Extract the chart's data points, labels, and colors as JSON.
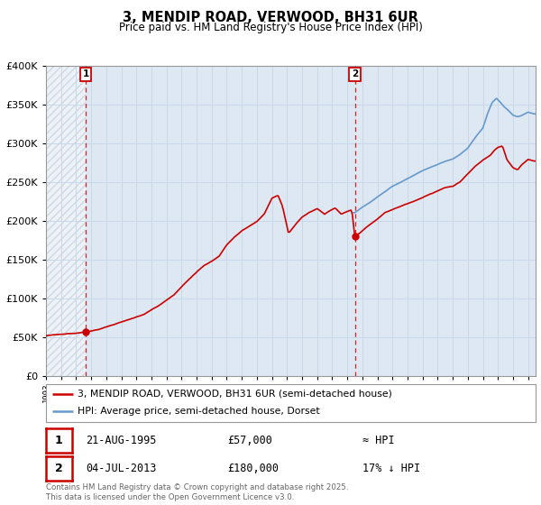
{
  "title": "3, MENDIP ROAD, VERWOOD, BH31 6UR",
  "subtitle": "Price paid vs. HM Land Registry's House Price Index (HPI)",
  "ylim": [
    0,
    400000
  ],
  "yticks": [
    0,
    50000,
    100000,
    150000,
    200000,
    250000,
    300000,
    350000,
    400000
  ],
  "hatch_region_end_year": 1995.65,
  "sale1": {
    "date_label": "21-AUG-1995",
    "year": 1995.64,
    "price": 57000,
    "hpi_label": "≈ HPI"
  },
  "sale2": {
    "date_label": "04-JUL-2013",
    "year": 2013.5,
    "price": 180000,
    "hpi_label": "17% ↓ HPI"
  },
  "legend_red": "3, MENDIP ROAD, VERWOOD, BH31 6UR (semi-detached house)",
  "legend_blue": "HPI: Average price, semi-detached house, Dorset",
  "footer": "Contains HM Land Registry data © Crown copyright and database right 2025.\nThis data is licensed under the Open Government Licence v3.0.",
  "red_color": "#cc0000",
  "blue_color": "#6699cc",
  "grid_color": "#c8d8e8",
  "bg_color": "#dde8f2",
  "xmin": 1993,
  "xmax": 2025.5,
  "red_keypoints": [
    [
      1993.0,
      52000
    ],
    [
      1994.0,
      54000
    ],
    [
      1995.0,
      55500
    ],
    [
      1995.64,
      57000
    ],
    [
      1996.5,
      60000
    ],
    [
      1997.5,
      66000
    ],
    [
      1998.5,
      72000
    ],
    [
      1999.5,
      79000
    ],
    [
      2000.5,
      90000
    ],
    [
      2001.5,
      104000
    ],
    [
      2002.5,
      124000
    ],
    [
      2003.5,
      142000
    ],
    [
      2004.5,
      154000
    ],
    [
      2005.0,
      168000
    ],
    [
      2005.5,
      178000
    ],
    [
      2006.0,
      186000
    ],
    [
      2006.5,
      192000
    ],
    [
      2007.0,
      198000
    ],
    [
      2007.5,
      208000
    ],
    [
      2008.0,
      228000
    ],
    [
      2008.4,
      232000
    ],
    [
      2008.7,
      218000
    ],
    [
      2009.1,
      183000
    ],
    [
      2009.6,
      195000
    ],
    [
      2010.0,
      204000
    ],
    [
      2010.5,
      210000
    ],
    [
      2011.0,
      215000
    ],
    [
      2011.5,
      208000
    ],
    [
      2011.8,
      212000
    ],
    [
      2012.2,
      216000
    ],
    [
      2012.6,
      208000
    ],
    [
      2013.0,
      212000
    ],
    [
      2013.3,
      214000
    ],
    [
      2013.5,
      180000
    ],
    [
      2013.8,
      184000
    ],
    [
      2014.3,
      192000
    ],
    [
      2015.0,
      202000
    ],
    [
      2015.5,
      210000
    ],
    [
      2016.0,
      214000
    ],
    [
      2016.5,
      218000
    ],
    [
      2017.0,
      222000
    ],
    [
      2017.5,
      226000
    ],
    [
      2018.0,
      230000
    ],
    [
      2018.5,
      234000
    ],
    [
      2019.0,
      238000
    ],
    [
      2019.5,
      242000
    ],
    [
      2020.0,
      244000
    ],
    [
      2020.5,
      250000
    ],
    [
      2021.0,
      260000
    ],
    [
      2021.5,
      270000
    ],
    [
      2022.0,
      278000
    ],
    [
      2022.5,
      284000
    ],
    [
      2022.8,
      291000
    ],
    [
      2023.0,
      294000
    ],
    [
      2023.3,
      296000
    ],
    [
      2023.6,
      278000
    ],
    [
      2024.0,
      268000
    ],
    [
      2024.3,
      265000
    ],
    [
      2024.6,
      272000
    ],
    [
      2025.0,
      278000
    ],
    [
      2025.4,
      276000
    ]
  ],
  "blue_keypoints": [
    [
      2013.5,
      210600
    ],
    [
      2014.0,
      218000
    ],
    [
      2014.5,
      224000
    ],
    [
      2015.0,
      231000
    ],
    [
      2015.5,
      238000
    ],
    [
      2016.0,
      245000
    ],
    [
      2016.5,
      250000
    ],
    [
      2017.0,
      255000
    ],
    [
      2017.5,
      260000
    ],
    [
      2018.0,
      265000
    ],
    [
      2018.5,
      269000
    ],
    [
      2019.0,
      273000
    ],
    [
      2019.5,
      277000
    ],
    [
      2020.0,
      280000
    ],
    [
      2020.5,
      286000
    ],
    [
      2021.0,
      294000
    ],
    [
      2021.5,
      308000
    ],
    [
      2022.0,
      320000
    ],
    [
      2022.3,
      338000
    ],
    [
      2022.6,
      352000
    ],
    [
      2022.9,
      358000
    ],
    [
      2023.1,
      354000
    ],
    [
      2023.4,
      347000
    ],
    [
      2023.7,
      342000
    ],
    [
      2024.0,
      336000
    ],
    [
      2024.3,
      334000
    ],
    [
      2024.6,
      336000
    ],
    [
      2025.0,
      340000
    ],
    [
      2025.4,
      338000
    ]
  ]
}
